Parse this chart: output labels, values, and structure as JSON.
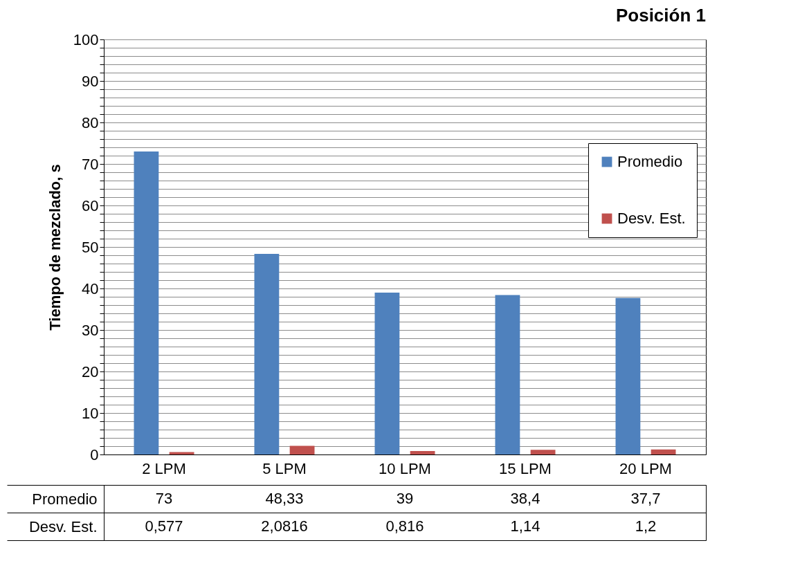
{
  "chart_data": {
    "type": "bar",
    "title": "Posición 1",
    "ylabel": "Tiempo de mezclado, s",
    "categories": [
      "2 LPM",
      "5 LPM",
      "10 LPM",
      "15 LPM",
      "20 LPM"
    ],
    "series": [
      {
        "name": "Promedio",
        "color": "#4f81bd",
        "values": [
          73,
          48.33,
          39,
          38.4,
          37.7
        ],
        "value_labels": [
          "73",
          "48,33",
          "39",
          "38,4",
          "37,7"
        ]
      },
      {
        "name": "Desv. Est.",
        "color": "#c0504d",
        "values": [
          0.577,
          2.0816,
          0.816,
          1.14,
          1.2
        ],
        "value_labels": [
          "0,577",
          "2,0816",
          "0,816",
          "1,14",
          "1,2"
        ]
      }
    ],
    "ylim": [
      0,
      100
    ],
    "yticks": [
      0,
      {
        "value": 2,
        "label": null
      },
      {
        "value": 4,
        "label": null
      },
      {
        "value": 6,
        "label": null
      },
      {
        "value": 8,
        "label": null
      },
      10,
      {
        "value": 12,
        "label": null
      },
      {
        "value": 14,
        "label": null
      },
      {
        "value": 16,
        "label": null
      },
      {
        "value": 18,
        "label": null
      },
      20,
      {
        "value": 22,
        "label": null
      },
      {
        "value": 24,
        "label": null
      },
      {
        "value": 26,
        "label": null
      },
      {
        "value": 28,
        "label": null
      },
      30,
      {
        "value": 32,
        "label": null
      },
      {
        "value": 34,
        "label": null
      },
      {
        "value": 36,
        "label": null
      },
      {
        "value": 38,
        "label": null
      },
      40,
      {
        "value": 42,
        "label": null
      },
      {
        "value": 44,
        "label": null
      },
      {
        "value": 46,
        "label": null
      },
      {
        "value": 48,
        "label": null
      },
      50,
      {
        "value": 52,
        "label": null
      },
      {
        "value": 54,
        "label": null
      },
      {
        "value": 56,
        "label": null
      },
      {
        "value": 58,
        "label": null
      },
      60,
      {
        "value": 62,
        "label": null
      },
      {
        "value": 64,
        "label": null
      },
      {
        "value": 66,
        "label": null
      },
      {
        "value": 68,
        "label": null
      },
      70,
      {
        "value": 72,
        "label": null
      },
      {
        "value": 74,
        "label": null
      },
      {
        "value": 76,
        "label": null
      },
      {
        "value": 78,
        "label": null
      },
      80,
      {
        "value": 82,
        "label": null
      },
      {
        "value": 84,
        "label": null
      },
      {
        "value": 86,
        "label": null
      },
      {
        "value": 88,
        "label": null
      },
      90,
      {
        "value": 92,
        "label": null
      },
      {
        "value": 94,
        "label": null
      },
      {
        "value": 96,
        "label": null
      },
      {
        "value": 98,
        "label": null
      },
      100
    ],
    "grid": "y",
    "legend": "top right"
  }
}
